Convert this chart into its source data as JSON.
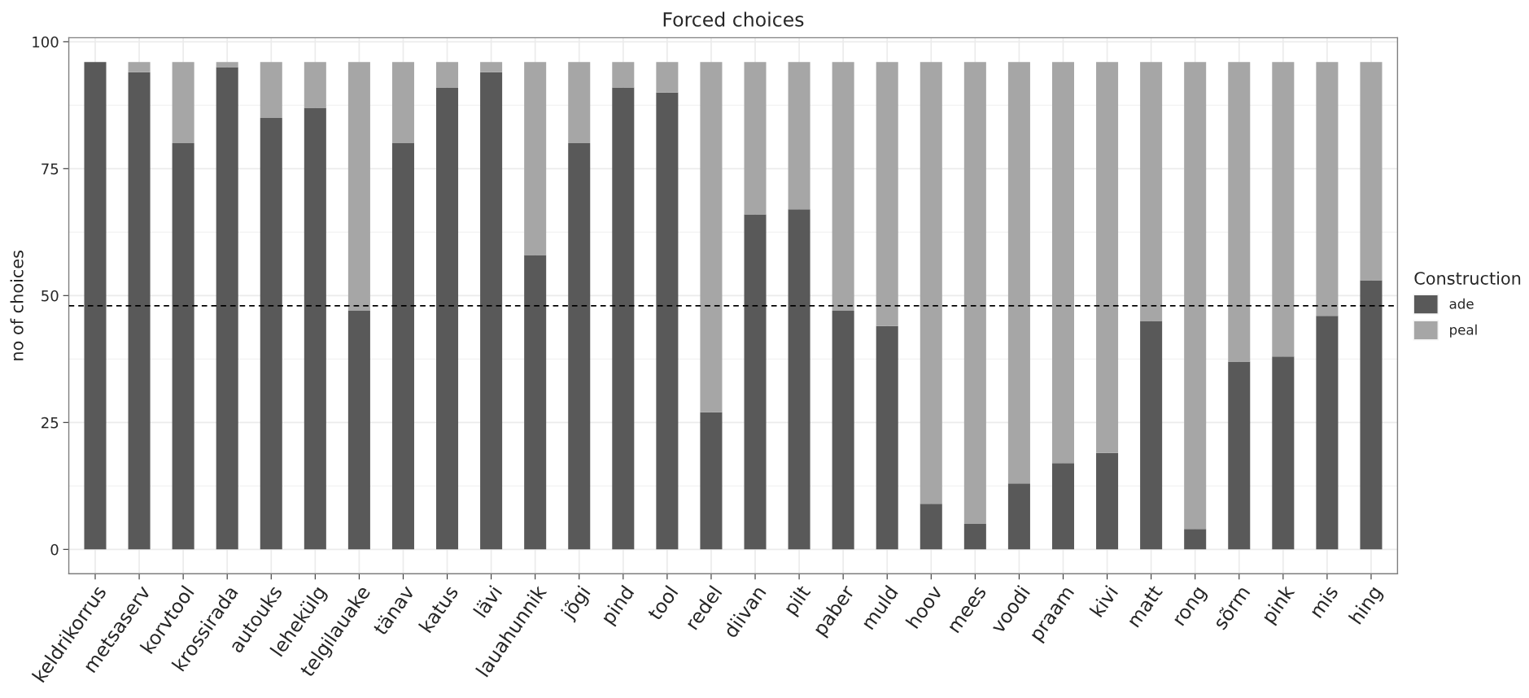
{
  "chart_data": {
    "type": "bar",
    "title": "Forced choices",
    "ylabel": "no of choices",
    "legend_title": "Construction",
    "categories": [
      "keldrikorrus",
      "metsaserv",
      "korvtool",
      "krossirada",
      "autouks",
      "lehekülg",
      "telgilauake",
      "tänav",
      "katus",
      "lävi",
      "lauahunnik",
      "jõgi",
      "pind",
      "tool",
      "redel",
      "diivan",
      "pilt",
      "paber",
      "muld",
      "hoov",
      "mees",
      "voodi",
      "praam",
      "kivi",
      "matt",
      "rong",
      "sõrm",
      "pink",
      "mis",
      "hing"
    ],
    "stacked": true,
    "series": [
      {
        "name": "ade",
        "color": "#595959",
        "values": [
          96,
          94,
          80,
          95,
          85,
          87,
          47,
          80,
          91,
          94,
          58,
          80,
          91,
          90,
          27,
          66,
          67,
          47,
          44,
          9,
          5,
          13,
          17,
          19,
          45,
          4,
          37,
          38,
          46,
          53
        ]
      },
      {
        "name": "peal",
        "color": "#a6a6a6",
        "values": [
          0,
          2,
          16,
          1,
          11,
          9,
          49,
          16,
          5,
          2,
          38,
          16,
          5,
          6,
          69,
          30,
          29,
          49,
          52,
          87,
          91,
          83,
          79,
          77,
          51,
          92,
          59,
          58,
          50,
          43
        ]
      }
    ],
    "ylim": [
      -4.8,
      100.8
    ],
    "yticks": [
      0,
      25,
      50,
      75,
      100
    ],
    "ref_lines": [
      {
        "axis": "y",
        "value": 48,
        "color": "#000000",
        "line_style": "dashed"
      }
    ],
    "grid": true,
    "legend": "right"
  }
}
